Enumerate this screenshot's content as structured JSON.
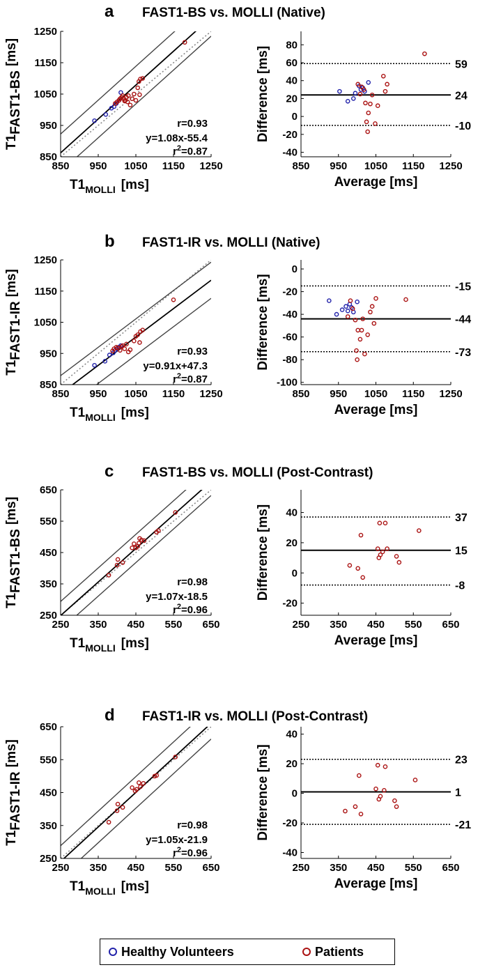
{
  "colors": {
    "volunteer": "#2222aa",
    "patient": "#aa1111",
    "identity": "#888888",
    "fit": "#000000",
    "ci": "#444444"
  },
  "chart_data": [
    {
      "letter": "a",
      "title": "FAST1-BS vs. MOLLI (Native)",
      "scatter": {
        "type": "scatter",
        "xlim": [
          850,
          1250
        ],
        "ylim": [
          850,
          1250
        ],
        "xticks": [
          "850",
          "950",
          "1050",
          "1150",
          "1250"
        ],
        "yticks": [
          "850",
          "950",
          "1050",
          "1150",
          "1250"
        ],
        "xlabel_main": "T1",
        "xlabel_sub": "MOLLI",
        "xlabel_unit": "[ms]",
        "ylabel_main": "T1",
        "ylabel_sub": "FAST1-BS",
        "ylabel_unit": "[ms]",
        "fit": {
          "slope": 1.08,
          "intercept": -55.4,
          "ci_offset": 60
        },
        "stats": {
          "r": "r=0.93",
          "eq": "y=1.08x-55.4",
          "r2_prefix": "r",
          "r2_sup": "2",
          "r2_value": "=0.87"
        },
        "volunteers": [
          [
            940,
            965
          ],
          [
            970,
            985
          ],
          [
            985,
            1005
          ],
          [
            992,
            1010
          ],
          [
            998,
            1020
          ],
          [
            1005,
            1030
          ],
          [
            1010,
            1055
          ]
        ],
        "patients": [
          [
            995,
            1020
          ],
          [
            1000,
            1025
          ],
          [
            1005,
            1030
          ],
          [
            1008,
            1035
          ],
          [
            1012,
            1040
          ],
          [
            1015,
            1045
          ],
          [
            1018,
            1035
          ],
          [
            1020,
            1028
          ],
          [
            1022,
            1030
          ],
          [
            1025,
            1040
          ],
          [
            1028,
            1025
          ],
          [
            1030,
            1045
          ],
          [
            1035,
            1015
          ],
          [
            1040,
            1035
          ],
          [
            1045,
            1050
          ],
          [
            1050,
            1030
          ],
          [
            1055,
            1070
          ],
          [
            1058,
            1090
          ],
          [
            1060,
            1048
          ],
          [
            1062,
            1098
          ],
          [
            1068,
            1100
          ],
          [
            1180,
            1215
          ]
        ]
      },
      "ba": {
        "type": "scatter",
        "xlim": [
          850,
          1250
        ],
        "ylim": [
          -45,
          95
        ],
        "xticks": [
          "850",
          "950",
          "1050",
          "1150",
          "1250"
        ],
        "yticks": [
          "-40",
          "-20",
          "0",
          "20",
          "40",
          "60",
          "80"
        ],
        "ytick_values": [
          -40,
          -20,
          0,
          20,
          40,
          60,
          80
        ],
        "xlabel": "Average [ms]",
        "ylabel": "Difference [ms]",
        "mean": 24,
        "upper": 59,
        "lower": -10,
        "mean_label": "24",
        "upper_label": "59",
        "lower_label": "-10",
        "volunteers": [
          [
            953,
            28
          ],
          [
            975,
            17
          ],
          [
            990,
            20
          ],
          [
            995,
            26
          ],
          [
            1005,
            34
          ],
          [
            1010,
            30
          ],
          [
            1015,
            32
          ],
          [
            1020,
            28
          ],
          [
            1030,
            38
          ]
        ],
        "patients": [
          [
            1002,
            36
          ],
          [
            1008,
            25
          ],
          [
            1012,
            33
          ],
          [
            1018,
            30
          ],
          [
            1022,
            15
          ],
          [
            1025,
            -6
          ],
          [
            1028,
            -17
          ],
          [
            1030,
            4
          ],
          [
            1035,
            14
          ],
          [
            1040,
            24
          ],
          [
            1048,
            -8
          ],
          [
            1055,
            12
          ],
          [
            1070,
            45
          ],
          [
            1075,
            28
          ],
          [
            1080,
            36
          ],
          [
            1180,
            70
          ]
        ]
      }
    },
    {
      "letter": "b",
      "title": "FAST1-IR vs. MOLLI (Native)",
      "scatter": {
        "type": "scatter",
        "xlim": [
          850,
          1250
        ],
        "ylim": [
          850,
          1250
        ],
        "xticks": [
          "850",
          "950",
          "1050",
          "1150",
          "1250"
        ],
        "yticks": [
          "850",
          "950",
          "1050",
          "1150",
          "1250"
        ],
        "xlabel_main": "T1",
        "xlabel_sub": "MOLLI",
        "xlabel_unit": "[ms]",
        "ylabel_main": "T1",
        "ylabel_sub": "FAST1-IR",
        "ylabel_unit": "[ms]",
        "fit": {
          "slope": 0.91,
          "intercept": 47.3,
          "ci_offset": 58
        },
        "stats": {
          "r": "r=0.93",
          "eq": "y=0.91x+47.3",
          "r2_prefix": "r",
          "r2_sup": "2",
          "r2_value": "=0.87"
        },
        "volunteers": [
          [
            940,
            912
          ],
          [
            968,
            925
          ],
          [
            980,
            945
          ],
          [
            990,
            952
          ],
          [
            995,
            960
          ],
          [
            1000,
            965
          ],
          [
            1005,
            970
          ],
          [
            1010,
            975
          ]
        ],
        "patients": [
          [
            988,
            958
          ],
          [
            992,
            965
          ],
          [
            998,
            970
          ],
          [
            1002,
            968
          ],
          [
            1008,
            960
          ],
          [
            1012,
            972
          ],
          [
            1015,
            975
          ],
          [
            1020,
            965
          ],
          [
            1025,
            980
          ],
          [
            1030,
            955
          ],
          [
            1035,
            962
          ],
          [
            1045,
            990
          ],
          [
            1050,
            1005
          ],
          [
            1055,
            1010
          ],
          [
            1060,
            985
          ],
          [
            1062,
            1020
          ],
          [
            1068,
            1025
          ],
          [
            1150,
            1122
          ]
        ]
      },
      "ba": {
        "type": "scatter",
        "xlim": [
          850,
          1250
        ],
        "ylim": [
          -102,
          8
        ],
        "xticks": [
          "850",
          "950",
          "1050",
          "1150",
          "1250"
        ],
        "yticks": [
          "-100",
          "-80",
          "-60",
          "-40",
          "-20",
          "0"
        ],
        "ytick_values": [
          -100,
          -80,
          -60,
          -40,
          -20,
          0
        ],
        "xlabel": "Average [ms]",
        "ylabel": "Difference [ms]",
        "mean": -44,
        "upper": -15,
        "lower": -73,
        "mean_label": "-44",
        "upper_label": "-15",
        "lower_label": "-73",
        "volunteers": [
          [
            925,
            -28
          ],
          [
            945,
            -40
          ],
          [
            960,
            -36
          ],
          [
            970,
            -33
          ],
          [
            975,
            -37
          ],
          [
            980,
            -31
          ],
          [
            985,
            -34
          ],
          [
            990,
            -38
          ],
          [
            1000,
            -29
          ]
        ],
        "patients": [
          [
            975,
            -42
          ],
          [
            982,
            -28
          ],
          [
            988,
            -35
          ],
          [
            995,
            -45
          ],
          [
            998,
            -72
          ],
          [
            1000,
            -80
          ],
          [
            1002,
            -54
          ],
          [
            1008,
            -62
          ],
          [
            1012,
            -54
          ],
          [
            1015,
            -44
          ],
          [
            1020,
            -75
          ],
          [
            1028,
            -58
          ],
          [
            1035,
            -38
          ],
          [
            1040,
            -33
          ],
          [
            1045,
            -48
          ],
          [
            1050,
            -26
          ],
          [
            1130,
            -27
          ]
        ]
      }
    },
    {
      "letter": "c",
      "title": "FAST1-BS vs. MOLLI (Post-Contrast)",
      "scatter": {
        "type": "scatter",
        "xlim": [
          250,
          650
        ],
        "ylim": [
          250,
          650
        ],
        "xticks": [
          "250",
          "350",
          "450",
          "550",
          "650"
        ],
        "yticks": [
          "250",
          "350",
          "450",
          "550",
          "650"
        ],
        "xlabel_main": "T1",
        "xlabel_sub": "MOLLI",
        "xlabel_unit": "[ms]",
        "ylabel_main": "T1",
        "ylabel_sub": "FAST1-BS",
        "ylabel_unit": "[ms]",
        "fit": {
          "slope": 1.07,
          "intercept": -18.5,
          "ci_offset": 45
        },
        "stats": {
          "r": "r=0.98",
          "eq": "y=1.07x-18.5",
          "r2_prefix": "r",
          "r2_sup": "2",
          "r2_value": "=0.96"
        },
        "volunteers": [],
        "patients": [
          [
            378,
            378
          ],
          [
            400,
            410
          ],
          [
            402,
            428
          ],
          [
            415,
            418
          ],
          [
            440,
            465
          ],
          [
            445,
            478
          ],
          [
            450,
            465
          ],
          [
            455,
            470
          ],
          [
            458,
            480
          ],
          [
            460,
            495
          ],
          [
            465,
            490
          ],
          [
            472,
            488
          ],
          [
            505,
            515
          ],
          [
            510,
            520
          ],
          [
            555,
            578
          ]
        ]
      },
      "ba": {
        "type": "scatter",
        "xlim": [
          250,
          650
        ],
        "ylim": [
          -28,
          55
        ],
        "xticks": [
          "250",
          "350",
          "450",
          "550",
          "650"
        ],
        "yticks": [
          "-20",
          "0",
          "20",
          "40"
        ],
        "ytick_values": [
          -20,
          0,
          20,
          40
        ],
        "xlabel": "Average [ms]",
        "ylabel": "Difference [ms]",
        "mean": 15,
        "upper": 37,
        "lower": -8,
        "mean_label": "15",
        "upper_label": "37",
        "lower_label": "-8",
        "volunteers": [],
        "patients": [
          [
            380,
            5
          ],
          [
            402,
            3
          ],
          [
            410,
            25
          ],
          [
            415,
            -3
          ],
          [
            455,
            16
          ],
          [
            458,
            10
          ],
          [
            460,
            33
          ],
          [
            462,
            12
          ],
          [
            468,
            14
          ],
          [
            475,
            33
          ],
          [
            480,
            16
          ],
          [
            505,
            11
          ],
          [
            512,
            7
          ],
          [
            565,
            28
          ]
        ]
      }
    },
    {
      "letter": "d",
      "title": "FAST1-IR vs. MOLLI (Post-Contrast)",
      "scatter": {
        "type": "scatter",
        "xlim": [
          250,
          650
        ],
        "ylim": [
          250,
          650
        ],
        "xticks": [
          "250",
          "350",
          "450",
          "550",
          "650"
        ],
        "yticks": [
          "250",
          "350",
          "450",
          "550",
          "650"
        ],
        "xlabel_main": "T1",
        "xlabel_sub": "MOLLI",
        "xlabel_unit": "[ms]",
        "ylabel_main": "T1",
        "ylabel_sub": "FAST1-IR",
        "ylabel_unit": "[ms]",
        "fit": {
          "slope": 1.05,
          "intercept": -21.9,
          "ci_offset": 48
        },
        "stats": {
          "r": "r=0.98",
          "eq": "y=1.05x-21.9",
          "r2_prefix": "r",
          "r2_sup": "2",
          "r2_value": "=0.96"
        },
        "volunteers": [],
        "patients": [
          [
            378,
            360
          ],
          [
            400,
            395
          ],
          [
            402,
            415
          ],
          [
            415,
            405
          ],
          [
            440,
            465
          ],
          [
            448,
            455
          ],
          [
            452,
            460
          ],
          [
            458,
            480
          ],
          [
            462,
            468
          ],
          [
            470,
            478
          ],
          [
            500,
            500
          ],
          [
            505,
            502
          ],
          [
            555,
            558
          ]
        ]
      },
      "ba": {
        "type": "scatter",
        "xlim": [
          250,
          650
        ],
        "ylim": [
          -44,
          45
        ],
        "xticks": [
          "250",
          "350",
          "450",
          "550",
          "650"
        ],
        "yticks": [
          "-40",
          "-20",
          "0",
          "20",
          "40"
        ],
        "ytick_values": [
          -40,
          -20,
          0,
          20,
          40
        ],
        "xlabel": "Average [ms]",
        "ylabel": "Difference [ms]",
        "mean": 1,
        "upper": 23,
        "lower": -21,
        "mean_label": "1",
        "upper_label": "23",
        "lower_label": "-21",
        "volunteers": [],
        "patients": [
          [
            368,
            -12
          ],
          [
            395,
            -9
          ],
          [
            405,
            12
          ],
          [
            410,
            -14
          ],
          [
            450,
            3
          ],
          [
            455,
            19
          ],
          [
            458,
            -4
          ],
          [
            462,
            -2
          ],
          [
            472,
            2
          ],
          [
            475,
            18
          ],
          [
            500,
            -5
          ],
          [
            505,
            -9
          ],
          [
            555,
            9
          ]
        ]
      }
    }
  ],
  "legend": {
    "volunteers": "Healthy Volunteers",
    "patients": "Patients"
  }
}
